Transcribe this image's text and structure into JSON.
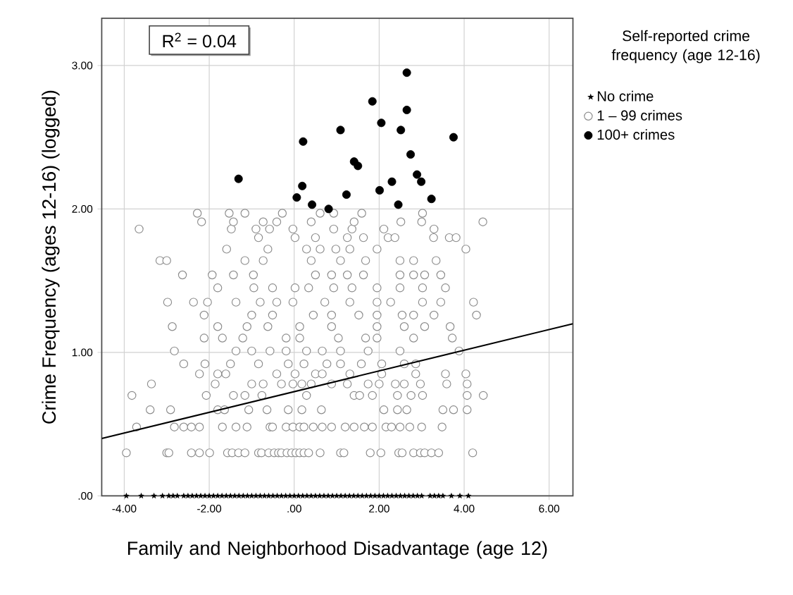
{
  "chart_data": {
    "type": "scatter",
    "xlabel": "Family and Neighborhood Disadvantage (age 12)",
    "ylabel": "Crime Frequency (ages 12-16) (logged)",
    "legend_title": "Self-reported crime frequency (age 12-16)",
    "annotations": [
      "R$^{2}$ = 0.04"
    ],
    "xlim": [
      -4.53,
      6.56
    ],
    "ylim": [
      0,
      3.33
    ],
    "xticks": [
      {
        "value": -4,
        "label": "-4.00"
      },
      {
        "value": -2,
        "label": "-2.00"
      },
      {
        "value": 0,
        "label": ".00"
      },
      {
        "value": 2,
        "label": "2.00"
      },
      {
        "value": 4,
        "label": "4.00"
      },
      {
        "value": 6,
        "label": "6.00"
      }
    ],
    "yticks": [
      {
        "value": 0,
        "label": ".00"
      },
      {
        "value": 1,
        "label": "1.00"
      },
      {
        "value": 2,
        "label": "2.00"
      },
      {
        "value": 3,
        "label": "3.00"
      }
    ],
    "grid": true,
    "legend": "right",
    "series": [
      {
        "name": "No crime",
        "type": "scatter",
        "marker": "star",
        "color": "#000000",
        "x": [
          -3.95,
          -3.6,
          -3.3,
          -3.1,
          -2.95,
          -2.85,
          -2.75,
          -2.6,
          -2.5,
          -2.4,
          -2.3,
          -2.2,
          -2.1,
          -2.0,
          -1.9,
          -1.8,
          -1.7,
          -1.6,
          -1.5,
          -1.4,
          -1.3,
          -1.2,
          -1.1,
          -1.0,
          -0.9,
          -0.8,
          -0.7,
          -0.6,
          -0.5,
          -0.4,
          -0.3,
          -0.2,
          -0.1,
          0.0,
          0.1,
          0.2,
          0.3,
          0.4,
          0.5,
          0.6,
          0.7,
          0.8,
          0.9,
          1.0,
          1.1,
          1.2,
          1.3,
          1.4,
          1.5,
          1.6,
          1.7,
          1.8,
          1.9,
          2.0,
          2.1,
          2.2,
          2.3,
          2.4,
          2.5,
          2.6,
          2.7,
          2.8,
          2.9,
          3.0,
          3.2,
          3.3,
          3.4,
          3.5,
          3.7,
          3.9,
          4.1
        ],
        "values": [
          0,
          0,
          0,
          0,
          0,
          0,
          0,
          0,
          0,
          0,
          0,
          0,
          0,
          0,
          0,
          0,
          0,
          0,
          0,
          0,
          0,
          0,
          0,
          0,
          0,
          0,
          0,
          0,
          0,
          0,
          0,
          0,
          0,
          0,
          0,
          0,
          0,
          0,
          0,
          0,
          0,
          0,
          0,
          0,
          0,
          0,
          0,
          0,
          0,
          0,
          0,
          0,
          0,
          0,
          0,
          0,
          0,
          0,
          0,
          0,
          0,
          0,
          0,
          0,
          0,
          0,
          0,
          0,
          0,
          0,
          0
        ]
      },
      {
        "name": "1 – 99 crimes",
        "type": "scatter",
        "marker": "circle",
        "color": "#8c8c8c",
        "x": [
          -3.95,
          -3.0,
          -2.95,
          -2.42,
          -2.23,
          -1.99,
          -1.57,
          -1.46,
          -1.31,
          -1.16,
          -0.84,
          -0.77,
          -0.6,
          -0.47,
          -0.37,
          -0.3,
          -0.17,
          -0.06,
          0.04,
          0.13,
          0.23,
          0.34,
          0.61,
          1.09,
          1.17,
          1.79,
          2.04,
          2.46,
          2.54,
          2.81,
          2.97,
          3.07,
          3.23,
          3.4,
          4.2,
          -3.71,
          -2.82,
          -2.6,
          -2.42,
          -2.23,
          -1.69,
          -1.37,
          -1.11,
          -0.57,
          -0.51,
          -0.19,
          -0.03,
          0.13,
          0.23,
          0.45,
          0.66,
          0.88,
          1.2,
          1.41,
          1.65,
          1.84,
          2.16,
          2.29,
          2.49,
          2.72,
          3.0,
          3.48,
          -3.39,
          -2.91,
          -1.8,
          -1.64,
          -1.07,
          -0.64,
          -0.14,
          0.18,
          0.64,
          2.11,
          2.43,
          2.65,
          3.5,
          3.75,
          4.07,
          -3.82,
          -2.07,
          -1.43,
          -1.16,
          -0.76,
          0.29,
          1.41,
          1.54,
          1.84,
          2.43,
          2.75,
          3.02,
          4.07,
          4.45,
          -3.36,
          -1.86,
          -1.0,
          -0.73,
          -0.3,
          -0.03,
          0.18,
          0.4,
          0.88,
          1.25,
          1.74,
          2.0,
          2.38,
          2.59,
          2.97,
          3.59,
          4.07,
          -2.23,
          -1.8,
          -1.61,
          -0.41,
          0.02,
          0.5,
          0.66,
          1.31,
          2.06,
          2.86,
          3.56,
          4.04,
          -2.6,
          -2.1,
          -1.5,
          -0.84,
          -0.14,
          0.23,
          0.77,
          1.09,
          1.58,
          2.06,
          2.59,
          2.86,
          -2.82,
          -1.37,
          -1.0,
          -0.57,
          -0.19,
          0.29,
          0.66,
          1.09,
          1.74,
          2.49,
          3.88,
          -2.12,
          -1.69,
          -1.21,
          -0.19,
          0.13,
          1.04,
          1.68,
          1.95,
          2.81,
          3.72,
          -2.87,
          -1.8,
          -1.11,
          -0.62,
          0.13,
          0.88,
          1.95,
          2.59,
          3.07,
          3.67,
          -2.12,
          -1.0,
          -0.51,
          0.45,
          0.88,
          1.52,
          1.95,
          2.54,
          2.81,
          3.29,
          4.29,
          -2.98,
          -2.37,
          -2.04,
          -1.37,
          -0.8,
          -0.41,
          -0.03,
          0.72,
          1.31,
          1.95,
          2.27,
          3.02,
          3.45,
          4.22,
          -1.8,
          -0.95,
          -0.51,
          0.02,
          0.34,
          0.93,
          1.36,
          1.95,
          2.49,
          3.02,
          3.56,
          -2.63,
          -1.93,
          -1.43,
          -0.96,
          0.5,
          0.88,
          1.25,
          1.63,
          2.49,
          2.81,
          3.07,
          3.45,
          -3.16,
          -3.0,
          -1.16,
          -0.73,
          0.4,
          1.09,
          1.68,
          2.49,
          2.81,
          3.34,
          -1.59,
          -0.62,
          0.29,
          0.61,
          0.98,
          1.31,
          1.95,
          4.04,
          -0.84,
          0.02,
          0.5,
          1.25,
          1.63,
          2.21,
          2.37,
          3.28,
          3.65,
          3.81,
          -3.65,
          -1.48,
          -0.9,
          -0.58,
          -0.03,
          0.93,
          1.36,
          2.11,
          3.29,
          -2.18,
          -1.43,
          -0.73,
          -0.41,
          0.4,
          1.41,
          2.51,
          3.0,
          4.44,
          -2.28,
          -1.53,
          -1.16,
          -0.28,
          0.61,
          0.93,
          1.59,
          3.02
        ],
        "values": [
          0.3,
          0.3,
          0.3,
          0.3,
          0.3,
          0.3,
          0.3,
          0.3,
          0.3,
          0.3,
          0.3,
          0.3,
          0.3,
          0.3,
          0.3,
          0.3,
          0.3,
          0.3,
          0.3,
          0.3,
          0.3,
          0.3,
          0.3,
          0.3,
          0.3,
          0.3,
          0.3,
          0.3,
          0.3,
          0.3,
          0.3,
          0.3,
          0.3,
          0.3,
          0.3,
          0.48,
          0.48,
          0.48,
          0.48,
          0.48,
          0.48,
          0.48,
          0.48,
          0.48,
          0.48,
          0.48,
          0.48,
          0.48,
          0.48,
          0.48,
          0.48,
          0.48,
          0.48,
          0.48,
          0.48,
          0.48,
          0.48,
          0.48,
          0.48,
          0.48,
          0.48,
          0.48,
          0.6,
          0.6,
          0.6,
          0.6,
          0.6,
          0.6,
          0.6,
          0.6,
          0.6,
          0.6,
          0.6,
          0.6,
          0.6,
          0.6,
          0.6,
          0.7,
          0.7,
          0.7,
          0.7,
          0.7,
          0.7,
          0.7,
          0.7,
          0.7,
          0.7,
          0.7,
          0.7,
          0.7,
          0.7,
          0.78,
          0.78,
          0.78,
          0.78,
          0.78,
          0.78,
          0.78,
          0.78,
          0.78,
          0.78,
          0.78,
          0.78,
          0.78,
          0.78,
          0.78,
          0.78,
          0.78,
          0.85,
          0.85,
          0.85,
          0.85,
          0.85,
          0.85,
          0.85,
          0.85,
          0.85,
          0.85,
          0.85,
          0.85,
          0.92,
          0.92,
          0.92,
          0.92,
          0.92,
          0.92,
          0.92,
          0.92,
          0.92,
          0.92,
          0.92,
          0.92,
          1.01,
          1.01,
          1.01,
          1.01,
          1.01,
          1.01,
          1.01,
          1.01,
          1.01,
          1.01,
          1.01,
          1.1,
          1.1,
          1.1,
          1.1,
          1.1,
          1.1,
          1.1,
          1.1,
          1.1,
          1.1,
          1.18,
          1.18,
          1.18,
          1.18,
          1.18,
          1.18,
          1.18,
          1.18,
          1.18,
          1.18,
          1.26,
          1.26,
          1.26,
          1.26,
          1.26,
          1.26,
          1.26,
          1.26,
          1.26,
          1.26,
          1.26,
          1.35,
          1.35,
          1.35,
          1.35,
          1.35,
          1.35,
          1.35,
          1.35,
          1.35,
          1.35,
          1.35,
          1.35,
          1.35,
          1.35,
          1.45,
          1.45,
          1.45,
          1.45,
          1.45,
          1.45,
          1.45,
          1.45,
          1.45,
          1.45,
          1.45,
          1.54,
          1.54,
          1.54,
          1.54,
          1.54,
          1.54,
          1.54,
          1.54,
          1.54,
          1.54,
          1.54,
          1.54,
          1.64,
          1.64,
          1.64,
          1.64,
          1.64,
          1.64,
          1.64,
          1.64,
          1.64,
          1.64,
          1.72,
          1.72,
          1.72,
          1.72,
          1.72,
          1.72,
          1.72,
          1.72,
          1.8,
          1.8,
          1.8,
          1.8,
          1.8,
          1.8,
          1.8,
          1.8,
          1.8,
          1.8,
          1.86,
          1.86,
          1.86,
          1.86,
          1.86,
          1.86,
          1.86,
          1.86,
          1.86,
          1.91,
          1.91,
          1.91,
          1.91,
          1.91,
          1.91,
          1.91,
          1.91,
          1.91,
          1.97,
          1.97,
          1.97,
          1.97,
          1.97,
          1.97,
          1.97,
          1.97
        ]
      },
      {
        "name": "100+ crimes",
        "type": "scatter",
        "marker": "circle",
        "color": "#000000",
        "x": [
          2.65,
          1.84,
          2.65,
          2.05,
          2.51,
          1.09,
          3.75,
          0.21,
          2.74,
          1.41,
          1.5,
          -1.31,
          2.89,
          2.99,
          0.19,
          2.3,
          1.23,
          2.01,
          0.06,
          0.42,
          0.81,
          2.45,
          3.23
        ],
        "values": [
          2.95,
          2.75,
          2.69,
          2.6,
          2.55,
          2.55,
          2.5,
          2.47,
          2.38,
          2.33,
          2.3,
          2.21,
          2.24,
          2.19,
          2.16,
          2.19,
          2.1,
          2.13,
          2.08,
          2.03,
          2.0,
          2.03,
          2.07
        ]
      },
      {
        "type": "line",
        "line_style": "solid",
        "color": "#000000",
        "x": [
          -4.53,
          6.56
        ],
        "values": [
          0.4,
          1.2
        ]
      }
    ]
  }
}
